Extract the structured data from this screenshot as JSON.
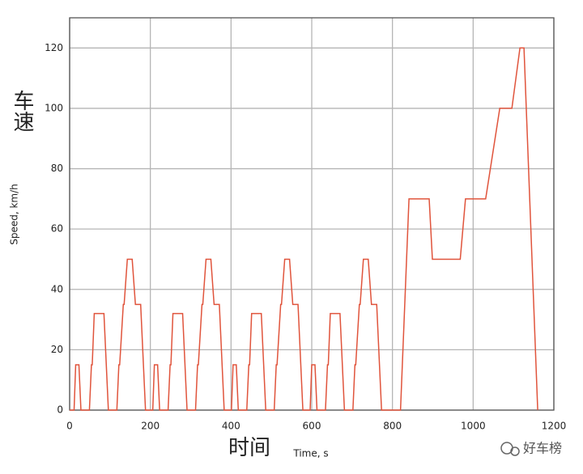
{
  "chart_data": {
    "type": "line",
    "y_label": "Speed, km/h",
    "x_label": "Time, s",
    "y_label_cn": "车速",
    "x_label_cn": "时间",
    "watermark": "好车榜",
    "x": [
      0,
      11,
      15,
      23,
      28,
      49,
      54,
      56,
      61,
      85,
      96,
      117,
      122,
      124,
      133,
      135,
      143,
      155,
      163,
      176,
      188,
      195,
      206,
      210,
      218,
      223,
      244,
      249,
      251,
      256,
      280,
      291,
      312,
      317,
      319,
      328,
      330,
      338,
      350,
      358,
      371,
      383,
      390,
      401,
      405,
      413,
      418,
      439,
      444,
      446,
      451,
      475,
      486,
      507,
      512,
      514,
      523,
      525,
      533,
      545,
      553,
      566,
      578,
      585,
      596,
      600,
      608,
      613,
      634,
      639,
      641,
      646,
      670,
      681,
      702,
      707,
      709,
      718,
      720,
      728,
      740,
      748,
      761,
      773,
      800,
      820,
      841,
      891,
      899,
      968,
      981,
      1031,
      1066,
      1096,
      1116,
      1126,
      1160
    ],
    "values": [
      0,
      0,
      15,
      15,
      0,
      0,
      15,
      15,
      32,
      32,
      0,
      0,
      15,
      15,
      35,
      35,
      50,
      50,
      35,
      35,
      0,
      0,
      0,
      15,
      15,
      0,
      0,
      15,
      15,
      32,
      32,
      0,
      0,
      15,
      15,
      35,
      35,
      50,
      50,
      35,
      35,
      0,
      0,
      0,
      15,
      15,
      0,
      0,
      15,
      15,
      32,
      32,
      0,
      0,
      15,
      15,
      35,
      35,
      50,
      50,
      35,
      35,
      0,
      0,
      0,
      15,
      15,
      0,
      0,
      15,
      15,
      32,
      32,
      0,
      0,
      15,
      15,
      35,
      35,
      50,
      50,
      35,
      35,
      0,
      0,
      0,
      70,
      70,
      50,
      50,
      70,
      70,
      100,
      100,
      120,
      120,
      0
    ],
    "color": "#e0543c",
    "xlim": [
      0,
      1200
    ],
    "xticks": [
      0,
      200,
      400,
      600,
      800,
      1000,
      1200
    ],
    "ylim": [
      0,
      130
    ],
    "yticks": [
      0,
      20,
      40,
      60,
      80,
      100,
      120
    ],
    "grid": true
  }
}
